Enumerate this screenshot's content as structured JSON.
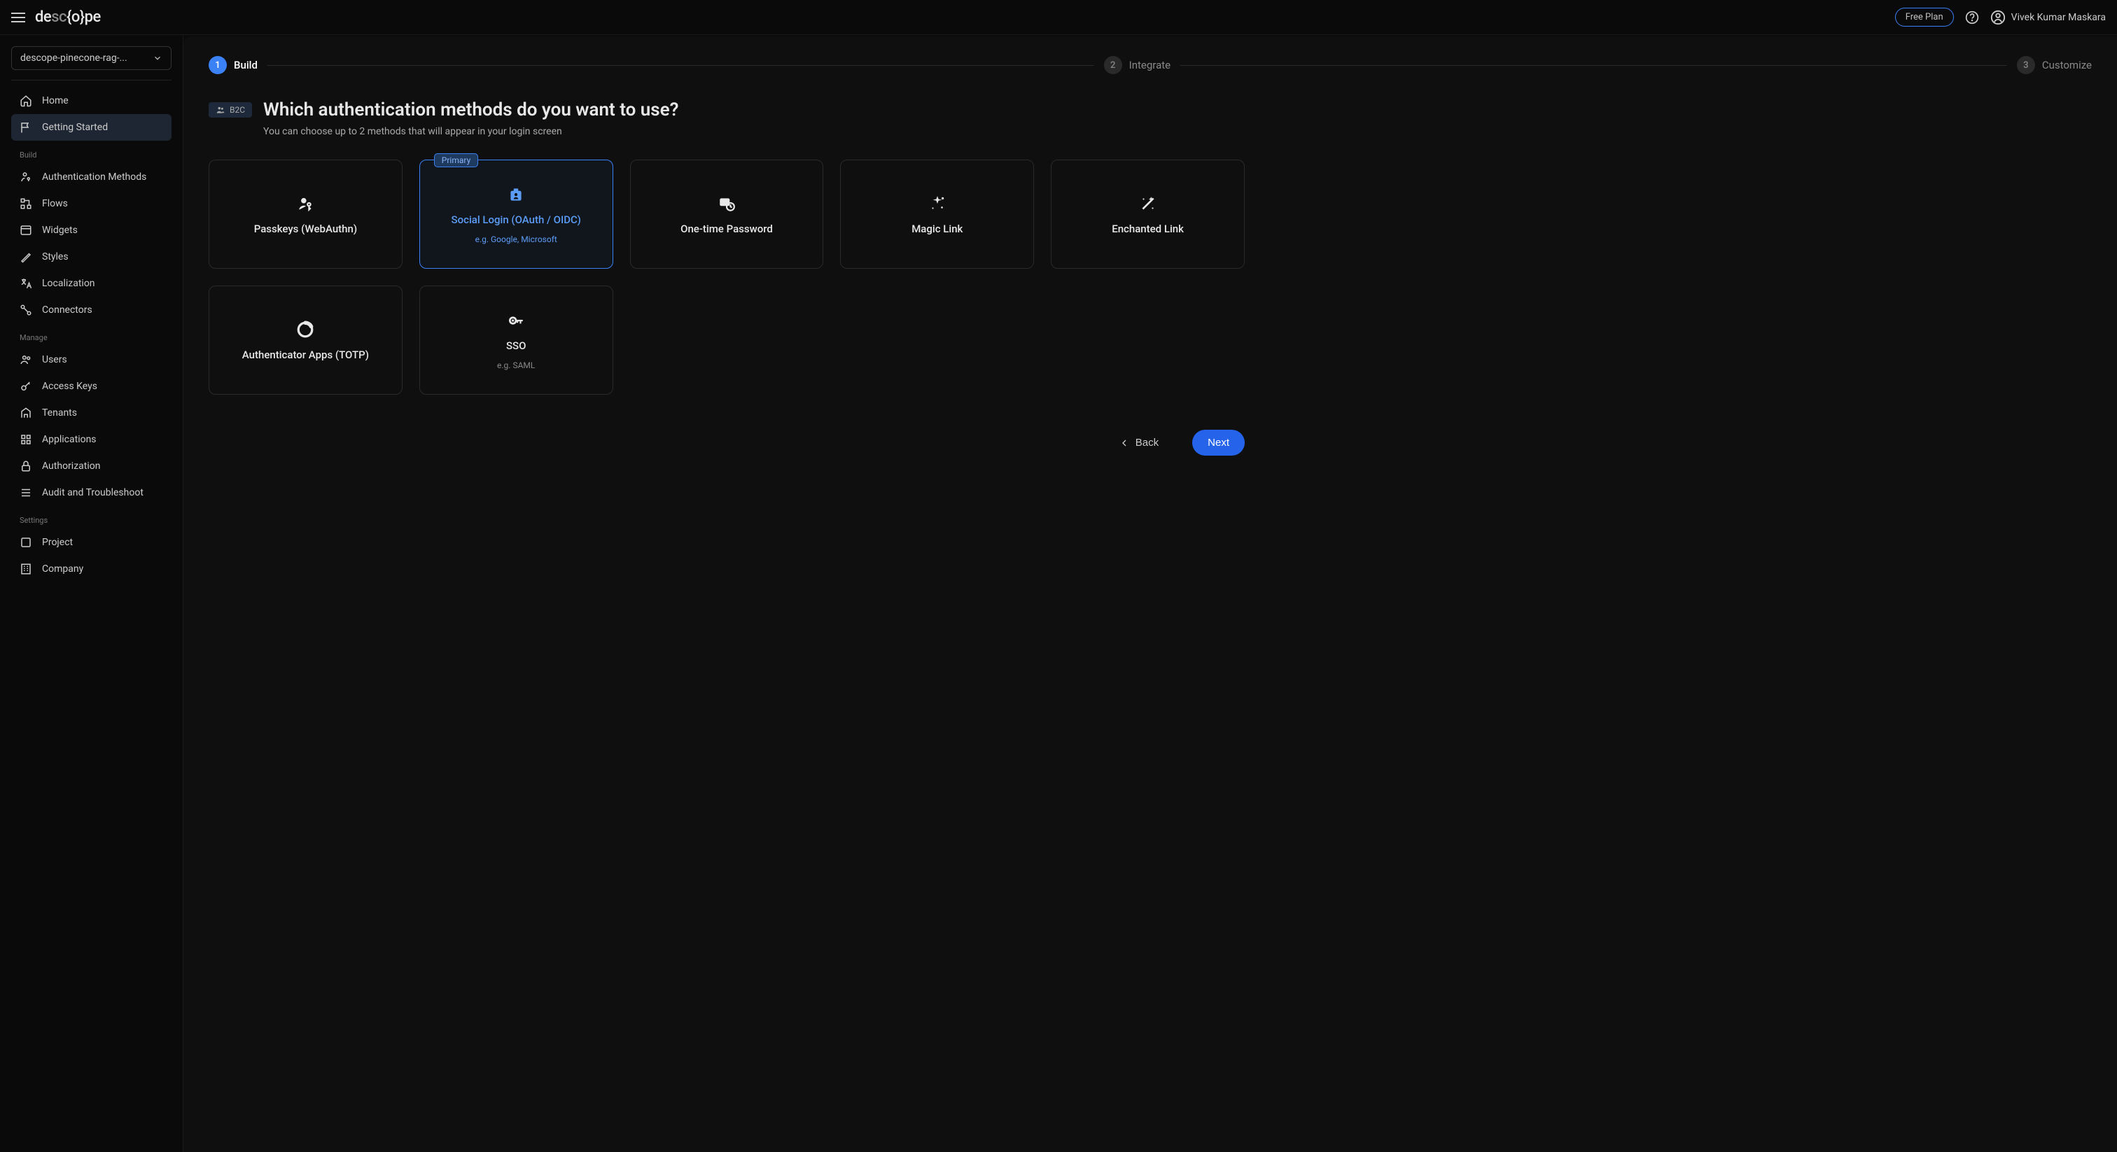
{
  "topbar": {
    "logo_html": "de<span class='gray'>sc</span>{o}pe",
    "plan": "Free Plan",
    "user_name": "Vivek Kumar Maskara"
  },
  "project_selector": {
    "value": "descope-pinecone-rag-..."
  },
  "sidebar": {
    "top": [
      {
        "label": "Home",
        "icon": "home"
      },
      {
        "label": "Getting Started",
        "icon": "flag",
        "active": true
      }
    ],
    "sections": [
      {
        "title": "Build",
        "items": [
          {
            "label": "Authentication Methods",
            "icon": "auth"
          },
          {
            "label": "Flows",
            "icon": "flows"
          },
          {
            "label": "Widgets",
            "icon": "widgets"
          },
          {
            "label": "Styles",
            "icon": "styles"
          },
          {
            "label": "Localization",
            "icon": "localization"
          },
          {
            "label": "Connectors",
            "icon": "connectors"
          }
        ]
      },
      {
        "title": "Manage",
        "items": [
          {
            "label": "Users",
            "icon": "users"
          },
          {
            "label": "Access Keys",
            "icon": "keys"
          },
          {
            "label": "Tenants",
            "icon": "tenants"
          },
          {
            "label": "Applications",
            "icon": "apps"
          },
          {
            "label": "Authorization",
            "icon": "lock"
          },
          {
            "label": "Audit and Troubleshoot",
            "icon": "audit"
          }
        ]
      },
      {
        "title": "Settings",
        "items": [
          {
            "label": "Project",
            "icon": "project"
          },
          {
            "label": "Company",
            "icon": "company"
          }
        ]
      }
    ]
  },
  "stepper": {
    "steps": [
      {
        "num": "1",
        "label": "Build",
        "active": true
      },
      {
        "num": "2",
        "label": "Integrate",
        "active": false
      },
      {
        "num": "3",
        "label": "Customize",
        "active": false
      }
    ]
  },
  "heading": {
    "tag": "B2C",
    "title": "Which authentication methods do you want to use?",
    "subtitle": "You can choose up to 2 methods that will appear in your login screen"
  },
  "cards": [
    {
      "label": "Passkeys (WebAuthn)",
      "sub": "",
      "icon": "passkey",
      "selected": false
    },
    {
      "label": "Social Login (OAuth / OIDC)",
      "sub": "e.g. Google, Microsoft",
      "icon": "social",
      "selected": true,
      "badge": "Primary"
    },
    {
      "label": "One-time Password",
      "sub": "",
      "icon": "otp",
      "selected": false
    },
    {
      "label": "Magic Link",
      "sub": "",
      "icon": "magic",
      "selected": false
    },
    {
      "label": "Enchanted Link",
      "sub": "",
      "icon": "enchanted",
      "selected": false
    },
    {
      "label": "Authenticator Apps (TOTP)",
      "sub": "",
      "icon": "totp",
      "selected": false
    },
    {
      "label": "SSO",
      "sub": "e.g. SAML",
      "icon": "sso",
      "selected": false
    }
  ],
  "footer": {
    "back": "Back",
    "next": "Next"
  },
  "colors": {
    "primary": "#3b82f6",
    "bg": "#0a0a0a",
    "panel": "#0f0f0f",
    "border": "#2a2a2a"
  }
}
